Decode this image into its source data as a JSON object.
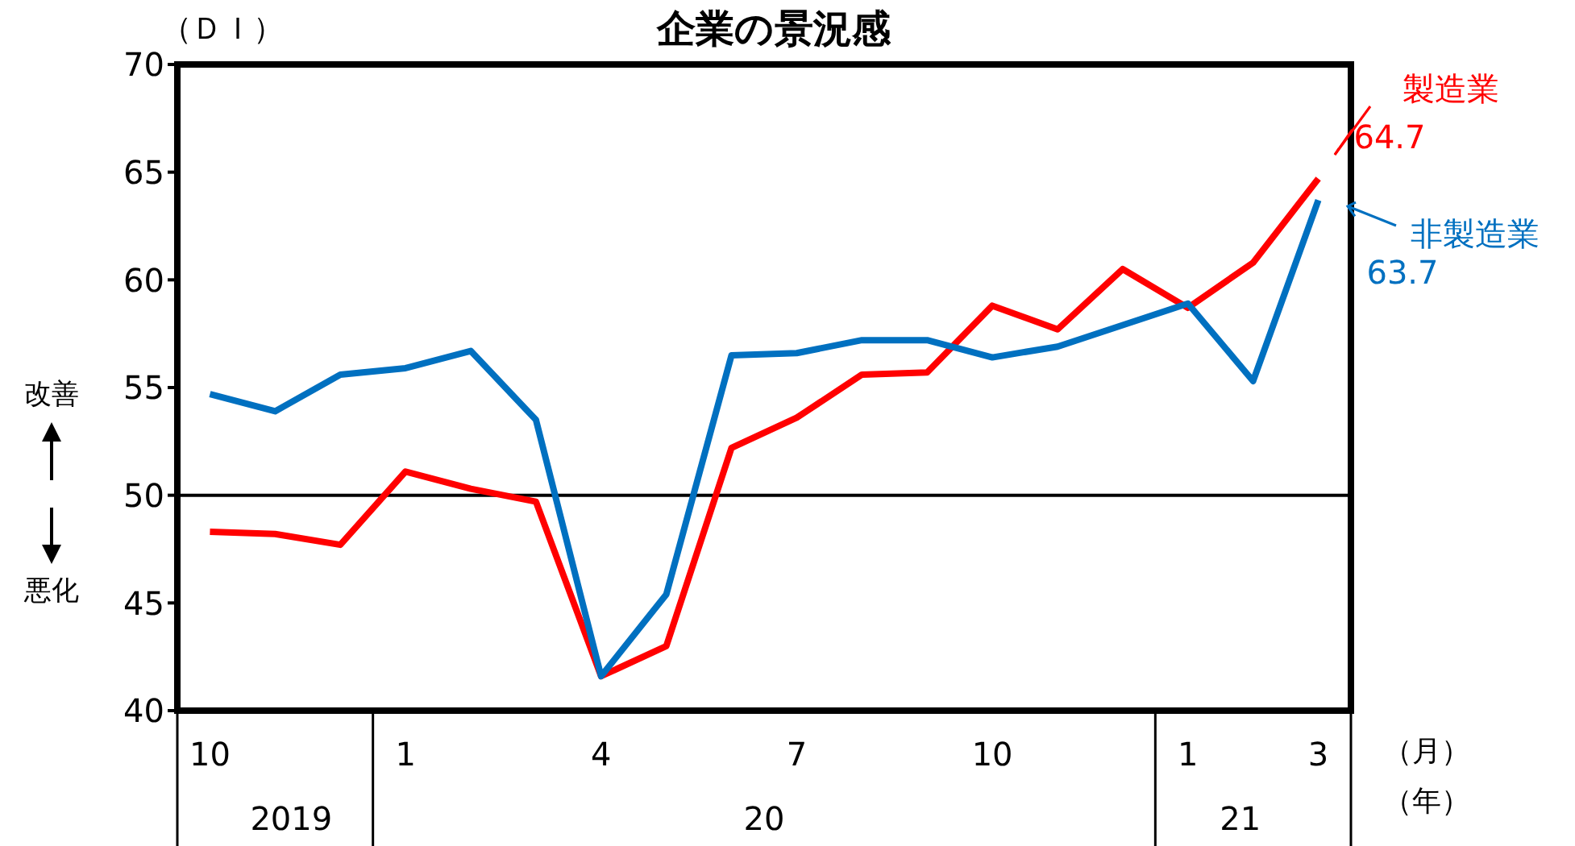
{
  "chart_data": {
    "type": "line",
    "title": "企業の景況感",
    "ylabel": "（ＤＩ）",
    "categories": [
      "10",
      null,
      null,
      "1",
      null,
      null,
      "4",
      null,
      null,
      "7",
      null,
      null,
      "10",
      null,
      null,
      "1",
      null,
      "3"
    ],
    "series": [
      {
        "name": "製造業",
        "color": "#ff0000",
        "values": [
          48.3,
          48.2,
          47.7,
          51.1,
          50.3,
          49.7,
          41.6,
          43.0,
          52.2,
          53.6,
          55.6,
          55.7,
          58.8,
          57.7,
          60.5,
          58.7,
          60.8,
          64.7
        ],
        "value_labels": [
          null,
          null,
          null,
          null,
          null,
          null,
          null,
          null,
          null,
          null,
          null,
          null,
          null,
          null,
          null,
          null,
          null,
          "64.7"
        ]
      },
      {
        "name": "非製造業",
        "color": "#0070c0",
        "values": [
          54.7,
          53.9,
          55.6,
          55.9,
          56.7,
          53.5,
          41.6,
          45.4,
          56.5,
          56.6,
          57.2,
          57.2,
          56.4,
          56.9,
          57.9,
          58.9,
          55.3,
          63.7
        ],
        "value_labels": [
          null,
          null,
          null,
          null,
          null,
          null,
          null,
          null,
          null,
          null,
          null,
          null,
          null,
          null,
          null,
          null,
          null,
          "63.7"
        ]
      }
    ],
    "ylim": [
      40,
      70
    ],
    "yticks": [
      40,
      45,
      50,
      55,
      60,
      65,
      70
    ],
    "ref_lines": [
      {
        "axis": "y",
        "value": 50,
        "color": "#000000"
      }
    ],
    "annotations": [
      "2019",
      "20",
      "21",
      "（月）",
      "（年）",
      "改善",
      "悪化"
    ],
    "marker": "none",
    "line_style": "solid"
  }
}
